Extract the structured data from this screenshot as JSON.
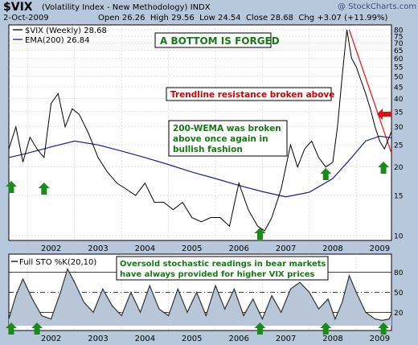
{
  "header": {
    "symbol": "$VIX",
    "name": "(Volatility Index - New Methodology)",
    "exchange": "INDX",
    "date": "2-Oct-2009",
    "open_label": "Open",
    "open": "26.26",
    "high_label": "High",
    "high": "29.56",
    "low_label": "Low",
    "low": "24.54",
    "close_label": "Close",
    "close": "28.68",
    "chg_label": "Chg",
    "chg": "+3.07 (+11.99%)",
    "watermark": "@ StockCharts.com"
  },
  "price_panel": {
    "legend_vix": "$VIX (Weekly) 28.68",
    "legend_ema": "EMA(200) 26.84",
    "yticks": [
      10,
      15,
      20,
      25,
      30,
      35,
      40,
      45,
      50,
      55,
      60,
      65,
      70,
      75,
      80
    ],
    "ylim": [
      10,
      80
    ],
    "scale": "log",
    "grid": true
  },
  "annotations": {
    "title_box": "A BOTTOM IS FORGED",
    "trendline_box": "Trendline resistance broken above",
    "wema_box": [
      "200-WEMA was broken",
      "above once again in",
      "bullish fashion"
    ],
    "sto_box": [
      "Oversold stochastic readings in bear markets",
      "have always provided for higher VIX prices"
    ]
  },
  "sto_panel": {
    "legend": "Full STO %K(20,10)",
    "yticks": [
      20,
      50,
      80
    ],
    "ylim": [
      0,
      100
    ]
  },
  "x_axis": {
    "years": [
      "2002",
      "2003",
      "2004",
      "2005",
      "2006",
      "2007",
      "2008",
      "2009"
    ]
  },
  "colors": {
    "vix_line": "#000000",
    "ema_line": "#1c1c9a",
    "trendline": "#e02020",
    "arrow_green": "#1a8a1a",
    "arrow_red": "#e01010",
    "title_text": "#137a13",
    "trend_text": "#cc0000",
    "wema_text": "#137a13",
    "sto_text": "#137a13",
    "sto_fill": "#b8c6d8"
  },
  "chart_data": [
    {
      "type": "line",
      "series": [
        {
          "name": "$VIX (Weekly) 28.68",
          "x": [
            2001.6,
            2001.75,
            2001.9,
            2002.05,
            2002.2,
            2002.35,
            2002.5,
            2002.65,
            2002.8,
            2002.95,
            2003.1,
            2003.3,
            2003.5,
            2003.7,
            2003.9,
            2004.1,
            2004.3,
            2004.5,
            2004.7,
            2004.9,
            2005.1,
            2005.3,
            2005.5,
            2005.7,
            2005.9,
            2006.1,
            2006.3,
            2006.5,
            2006.7,
            2006.9,
            2007.05,
            2007.2,
            2007.4,
            2007.6,
            2007.75,
            2007.9,
            2008.05,
            2008.2,
            2008.35,
            2008.5,
            2008.6,
            2008.7,
            2008.8,
            2008.9,
            2009.0,
            2009.1,
            2009.2,
            2009.3,
            2009.4,
            2009.5,
            2009.6,
            2009.75
          ],
          "values": [
            24,
            30,
            21,
            27,
            24,
            22,
            38,
            42,
            30,
            36,
            34,
            28,
            22,
            19,
            17,
            16,
            15,
            17,
            14,
            14,
            13,
            14,
            12,
            11.5,
            12,
            12,
            11,
            17,
            13,
            11,
            10.5,
            12,
            16,
            25,
            20,
            24,
            26,
            22,
            20,
            21,
            30,
            50,
            80,
            60,
            55,
            48,
            42,
            36,
            30,
            26,
            24,
            28.68
          ]
        },
        {
          "name": "EMA(200) 26.84",
          "x": [
            2001.6,
            2002.0,
            2002.5,
            2003.0,
            2003.5,
            2004.0,
            2004.5,
            2005.0,
            2005.5,
            2006.0,
            2006.5,
            2007.0,
            2007.5,
            2008.0,
            2008.5,
            2008.9,
            2009.2,
            2009.5,
            2009.75
          ],
          "values": [
            22,
            23,
            24.5,
            26,
            25,
            23.5,
            22,
            20.5,
            19,
            17.8,
            16.6,
            15.6,
            14.8,
            15.5,
            17.8,
            22,
            26,
            27.3,
            26.84
          ]
        }
      ],
      "trendline": {
        "x": [
          2008.85,
          2009.75
        ],
        "values": [
          80,
          23
        ]
      },
      "ylim": [
        10,
        80
      ],
      "scale": "log"
    },
    {
      "type": "line",
      "series": [
        {
          "name": "Full STO %K(20,10)",
          "x": [
            2001.6,
            2001.75,
            2001.9,
            2002.1,
            2002.3,
            2002.5,
            2002.7,
            2002.85,
            2003.0,
            2003.2,
            2003.4,
            2003.6,
            2003.8,
            2004.0,
            2004.2,
            2004.4,
            2004.6,
            2004.8,
            2005.0,
            2005.2,
            2005.4,
            2005.6,
            2005.8,
            2006.0,
            2006.2,
            2006.4,
            2006.6,
            2006.8,
            2007.0,
            2007.2,
            2007.4,
            2007.6,
            2007.8,
            2008.0,
            2008.2,
            2008.4,
            2008.55,
            2008.7,
            2008.85,
            2009.0,
            2009.2,
            2009.4,
            2009.55,
            2009.7,
            2009.75
          ],
          "values": [
            10,
            45,
            70,
            40,
            15,
            10,
            50,
            85,
            65,
            35,
            20,
            55,
            30,
            15,
            50,
            20,
            60,
            25,
            15,
            55,
            20,
            50,
            15,
            60,
            25,
            55,
            15,
            40,
            10,
            45,
            20,
            55,
            65,
            50,
            25,
            40,
            10,
            35,
            75,
            50,
            20,
            10,
            8,
            10,
            18
          ]
        }
      ],
      "ylim": [
        0,
        100
      ],
      "hlines": [
        20,
        50,
        80
      ]
    }
  ]
}
